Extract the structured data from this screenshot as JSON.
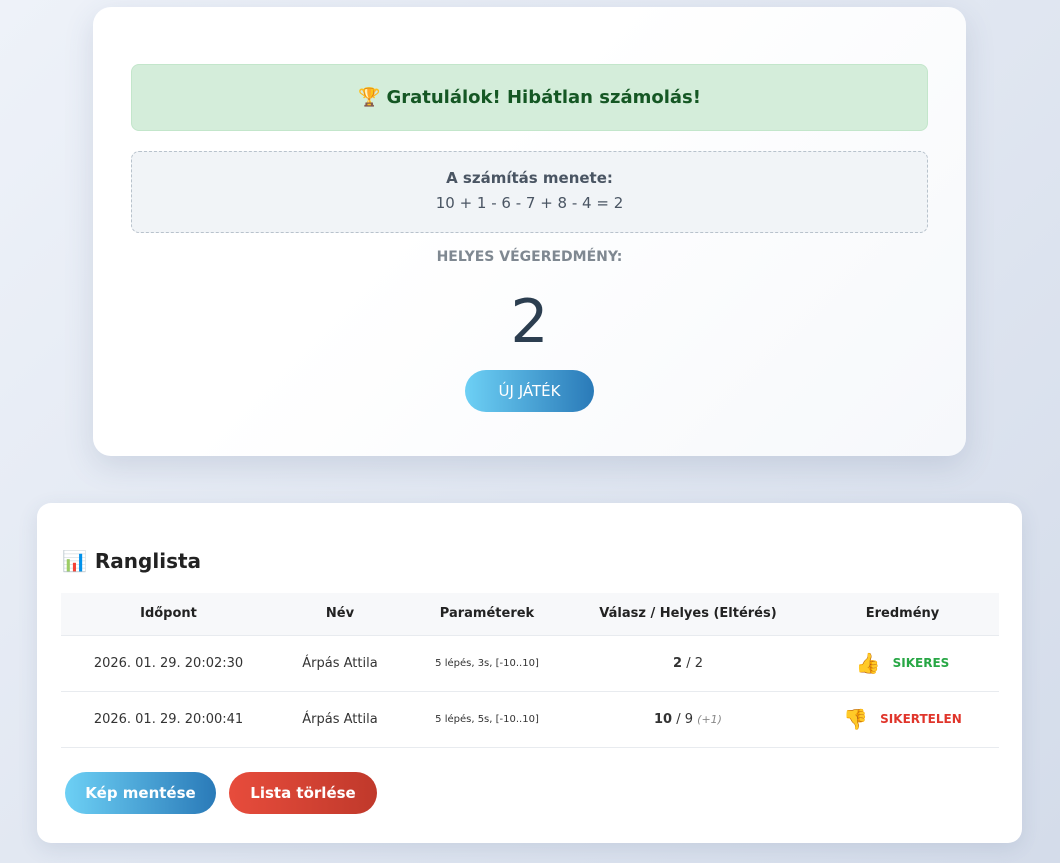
{
  "result": {
    "success_icon": "trophy-icon",
    "success_text": "Gratulálok! Hibátlan számolás!",
    "steps_title": "A számítás menete:",
    "steps_expr": "10 + 1 - 6 - 7 + 8 - 4 = 2",
    "correct_label": "HELYES VÉGEREDMÉNY:",
    "correct_value": "2",
    "new_game_label": "ÚJ JÁTÉK"
  },
  "leaderboard": {
    "icon": "bar-chart-icon",
    "title": "Ranglista",
    "columns": [
      "Időpont",
      "Név",
      "Paraméterek",
      "Válasz / Helyes (Eltérés)",
      "Eredmény"
    ],
    "rows": [
      {
        "time": "2026. 01. 29. 20:02:30",
        "name": "Árpás Attila",
        "params": "5 lépés, 3s, [-10..10]",
        "answer": "2",
        "correct": " / 2",
        "diff": "",
        "result": "SIKERES",
        "icon": "thumbs-up-icon"
      },
      {
        "time": "2026. 01. 29. 20:00:41",
        "name": "Árpás Attila",
        "params": "5 lépés, 5s, [-10..10]",
        "answer": "10",
        "correct": " / 9 ",
        "diff": "(+1)",
        "result": "SIKERTELEN",
        "icon": "thumbs-down-icon"
      }
    ],
    "save_label": "Kép mentése",
    "clear_label": "Lista törlése"
  },
  "colors": {
    "success": "#28a745",
    "fail": "#e0352b",
    "accent": "#2a7ab8"
  }
}
